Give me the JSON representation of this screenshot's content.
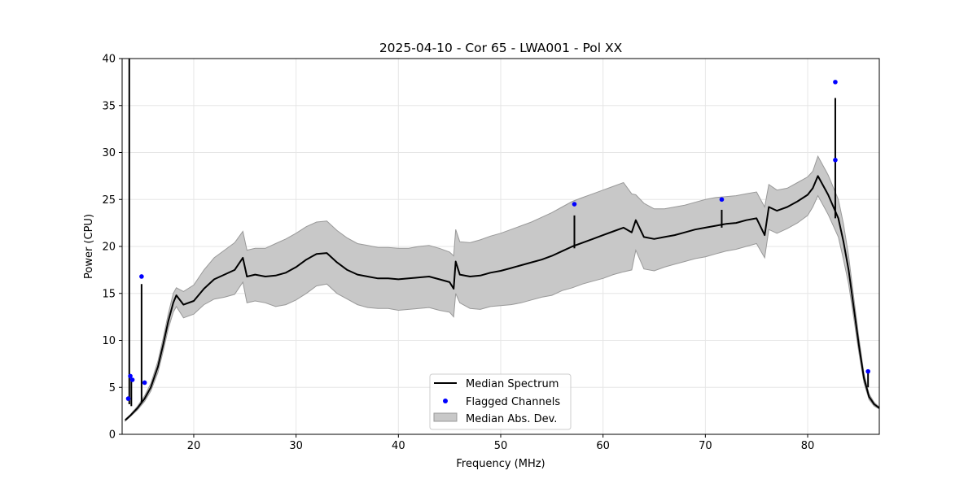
{
  "chart_data": {
    "type": "line",
    "title": "2025-04-10 - Cor 65 - LWA001 - Pol XX",
    "xlabel": "Frequency (MHz)",
    "ylabel": "Power (CPU)",
    "xlim": [
      13.0,
      87.0
    ],
    "ylim": [
      0,
      40
    ],
    "grid": true,
    "xticks": [
      20,
      30,
      40,
      50,
      60,
      70,
      80
    ],
    "yticks": [
      0,
      5,
      10,
      15,
      20,
      25,
      30,
      35,
      40
    ],
    "xtick_labels": [
      "20",
      "30",
      "40",
      "50",
      "60",
      "70",
      "80"
    ],
    "ytick_labels": [
      "0",
      "5",
      "10",
      "15",
      "20",
      "25",
      "30",
      "35",
      "40"
    ],
    "legend": {
      "position": "lower-center",
      "entries": [
        "Median Spectrum",
        "Flagged Channels",
        "Median Abs. Dev."
      ]
    },
    "colors": {
      "median": "#000000",
      "flagged": "#0000ff",
      "mad_fill": "#c8c8c8",
      "mad_edge": "#999999",
      "grid": "#e6e6e6"
    },
    "series": [
      {
        "name": "Median Spectrum",
        "x": [
          13.3,
          13.8,
          14.5,
          15.2,
          15.8,
          16.5,
          17.0,
          17.5,
          18.0,
          18.3,
          19.0,
          20.0,
          21.0,
          22.0,
          23.0,
          24.0,
          24.8,
          25.2,
          26.0,
          27.0,
          28.0,
          29.0,
          30.0,
          31.0,
          32.0,
          33.0,
          34.0,
          35.0,
          36.0,
          37.0,
          38.0,
          39.0,
          40.0,
          41.0,
          42.0,
          43.0,
          44.0,
          45.0,
          45.4,
          45.6,
          46.0,
          47.0,
          48.0,
          49.0,
          50.0,
          51.0,
          52.0,
          53.0,
          54.0,
          55.0,
          56.0,
          57.0,
          58.0,
          59.0,
          60.0,
          61.0,
          62.0,
          62.8,
          63.2,
          64.0,
          65.0,
          66.0,
          67.0,
          68.0,
          69.0,
          70.0,
          71.0,
          72.0,
          73.0,
          74.0,
          75.0,
          75.8,
          76.2,
          77.0,
          78.0,
          79.0,
          80.0,
          80.5,
          81.0,
          82.0,
          83.0,
          83.5,
          84.0,
          84.5,
          85.0,
          85.5,
          86.0,
          86.5,
          87.0
        ],
        "y": [
          1.5,
          2.0,
          2.8,
          3.8,
          5.0,
          7.2,
          9.5,
          12.0,
          14.0,
          14.8,
          13.8,
          14.2,
          15.5,
          16.5,
          17.0,
          17.5,
          18.8,
          16.8,
          17.0,
          16.8,
          16.9,
          17.2,
          17.8,
          18.6,
          19.2,
          19.3,
          18.3,
          17.5,
          17.0,
          16.8,
          16.6,
          16.6,
          16.5,
          16.6,
          16.7,
          16.8,
          16.5,
          16.2,
          15.5,
          18.4,
          17.0,
          16.8,
          16.9,
          17.2,
          17.4,
          17.7,
          18.0,
          18.3,
          18.6,
          19.0,
          19.5,
          20.0,
          20.4,
          20.8,
          21.2,
          21.6,
          22.0,
          21.5,
          22.8,
          21.0,
          20.8,
          21.0,
          21.2,
          21.5,
          21.8,
          22.0,
          22.2,
          22.4,
          22.5,
          22.8,
          23.0,
          21.2,
          24.2,
          23.8,
          24.2,
          24.8,
          25.5,
          26.2,
          27.5,
          25.5,
          23.0,
          20.5,
          17.5,
          13.5,
          9.5,
          6.0,
          4.0,
          3.2,
          2.8
        ]
      },
      {
        "name": "Median Abs. Dev.",
        "x": [
          13.3,
          13.8,
          14.5,
          15.2,
          15.8,
          16.5,
          17.0,
          17.5,
          18.0,
          18.3,
          19.0,
          20.0,
          21.0,
          22.0,
          23.0,
          24.0,
          24.8,
          25.2,
          26.0,
          27.0,
          28.0,
          29.0,
          30.0,
          31.0,
          32.0,
          33.0,
          34.0,
          35.0,
          36.0,
          37.0,
          38.0,
          39.0,
          40.0,
          41.0,
          42.0,
          43.0,
          44.0,
          45.0,
          45.4,
          45.6,
          46.0,
          47.0,
          48.0,
          49.0,
          50.0,
          51.0,
          52.0,
          53.0,
          54.0,
          55.0,
          56.0,
          57.0,
          58.0,
          59.0,
          60.0,
          61.0,
          62.0,
          62.8,
          63.2,
          64.0,
          65.0,
          66.0,
          67.0,
          68.0,
          69.0,
          70.0,
          71.0,
          72.0,
          73.0,
          74.0,
          75.0,
          75.8,
          76.2,
          77.0,
          78.0,
          79.0,
          80.0,
          80.5,
          81.0,
          82.0,
          83.0,
          83.5,
          84.0,
          84.5,
          85.0,
          85.5,
          86.0,
          86.5,
          87.0
        ],
        "upper": [
          1.6,
          2.1,
          3.0,
          4.1,
          5.4,
          7.8,
          10.2,
          12.8,
          15.0,
          15.6,
          15.2,
          15.9,
          17.5,
          18.8,
          19.6,
          20.4,
          21.6,
          19.6,
          19.8,
          19.8,
          20.3,
          20.8,
          21.4,
          22.1,
          22.6,
          22.7,
          21.7,
          20.9,
          20.3,
          20.1,
          19.9,
          19.9,
          19.8,
          19.8,
          20.0,
          20.1,
          19.8,
          19.4,
          19.0,
          21.8,
          20.5,
          20.4,
          20.7,
          21.1,
          21.4,
          21.8,
          22.2,
          22.6,
          23.1,
          23.6,
          24.2,
          24.8,
          25.2,
          25.6,
          26.0,
          26.4,
          26.8,
          25.6,
          25.5,
          24.6,
          24.0,
          24.0,
          24.2,
          24.4,
          24.7,
          25.0,
          25.2,
          25.3,
          25.4,
          25.6,
          25.8,
          24.2,
          26.6,
          26.0,
          26.2,
          26.8,
          27.4,
          28.0,
          29.6,
          27.6,
          25.0,
          22.4,
          19.0,
          14.6,
          10.3,
          6.5,
          4.3,
          3.4,
          2.9
        ],
        "lower": [
          1.4,
          1.9,
          2.6,
          3.5,
          4.6,
          6.6,
          8.8,
          11.2,
          13.0,
          13.6,
          12.4,
          12.8,
          13.8,
          14.4,
          14.6,
          14.9,
          16.2,
          14.0,
          14.2,
          14.0,
          13.6,
          13.8,
          14.3,
          15.0,
          15.8,
          16.0,
          15.0,
          14.4,
          13.8,
          13.5,
          13.4,
          13.4,
          13.2,
          13.3,
          13.4,
          13.5,
          13.2,
          13.0,
          12.5,
          15.0,
          14.0,
          13.4,
          13.3,
          13.6,
          13.7,
          13.8,
          14.0,
          14.3,
          14.6,
          14.8,
          15.3,
          15.6,
          16.0,
          16.3,
          16.6,
          17.0,
          17.3,
          17.5,
          19.6,
          17.6,
          17.4,
          17.8,
          18.1,
          18.4,
          18.7,
          18.9,
          19.2,
          19.5,
          19.7,
          20.0,
          20.3,
          18.8,
          21.8,
          21.4,
          21.9,
          22.5,
          23.3,
          24.2,
          25.4,
          23.4,
          21.0,
          18.6,
          16.0,
          12.4,
          8.7,
          5.5,
          3.7,
          3.0,
          2.7
        ]
      },
      {
        "name": "Flagged Channels",
        "points": [
          {
            "x": 13.6,
            "y": 3.8
          },
          {
            "x": 13.8,
            "y": 6.2
          },
          {
            "x": 14.0,
            "y": 5.8
          },
          {
            "x": 14.9,
            "y": 16.8
          },
          {
            "x": 15.2,
            "y": 5.5
          },
          {
            "x": 57.2,
            "y": 24.5
          },
          {
            "x": 71.6,
            "y": 25.0
          },
          {
            "x": 82.7,
            "y": 37.5
          },
          {
            "x": 82.7,
            "y": 29.2
          },
          {
            "x": 85.9,
            "y": 6.7
          }
        ]
      }
    ],
    "spikes": [
      {
        "x": 13.7,
        "base": 3.2,
        "peak": 40.0
      },
      {
        "x": 13.9,
        "base": 3.0,
        "peak": 6.0
      },
      {
        "x": 14.9,
        "base": 3.4,
        "peak": 16.0
      },
      {
        "x": 57.2,
        "base": 19.8,
        "peak": 23.3
      },
      {
        "x": 71.6,
        "base": 22.0,
        "peak": 23.9
      },
      {
        "x": 82.7,
        "base": 23.0,
        "peak": 35.8
      },
      {
        "x": 85.9,
        "base": 5.0,
        "peak": 6.5
      }
    ]
  }
}
